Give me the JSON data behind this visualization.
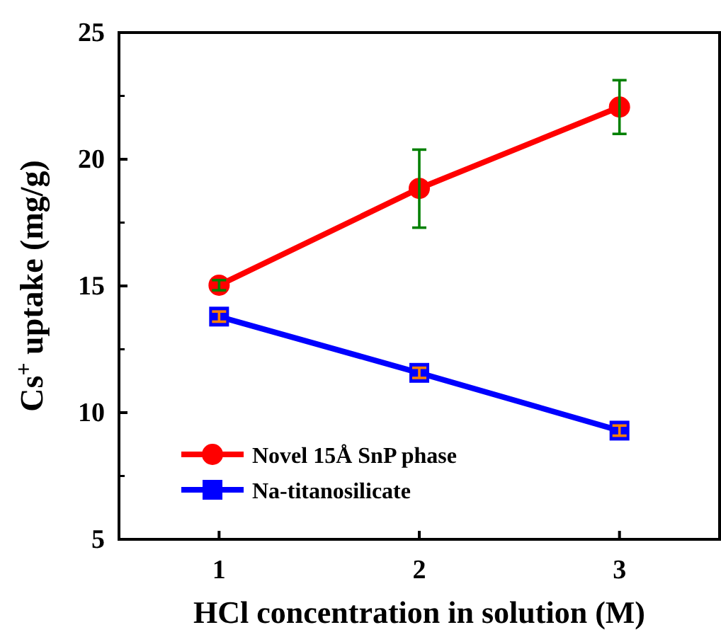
{
  "chart_data": {
    "type": "line",
    "xlabel": "HCl concentration in solution (M)",
    "ylabel": "Cs$^{+}$ uptake (mg/g)",
    "x": [
      1,
      2,
      3
    ],
    "xlim": [
      0.5,
      3.5
    ],
    "xticks": [
      1,
      2,
      3
    ],
    "ylim": [
      5,
      25
    ],
    "yticks": [
      5,
      10,
      15,
      20,
      25
    ],
    "grid": false,
    "legend": "bottom left",
    "line_style": "solid",
    "series": [
      {
        "name": "Novel 15Å SnP phase",
        "color": "#ff0000",
        "marker": "circle",
        "values": [
          15.03,
          18.85,
          22.06
        ],
        "errors": [
          0.2,
          [
            17.3,
            20.38
          ],
          [
            21.0,
            23.12
          ]
        ]
      },
      {
        "name": "Na-titanosilicate",
        "color": "#0000ff",
        "marker": "square",
        "values": [
          13.79,
          11.57,
          9.29
        ],
        "errors": [
          0.2,
          0.2,
          0.2
        ]
      }
    ]
  }
}
